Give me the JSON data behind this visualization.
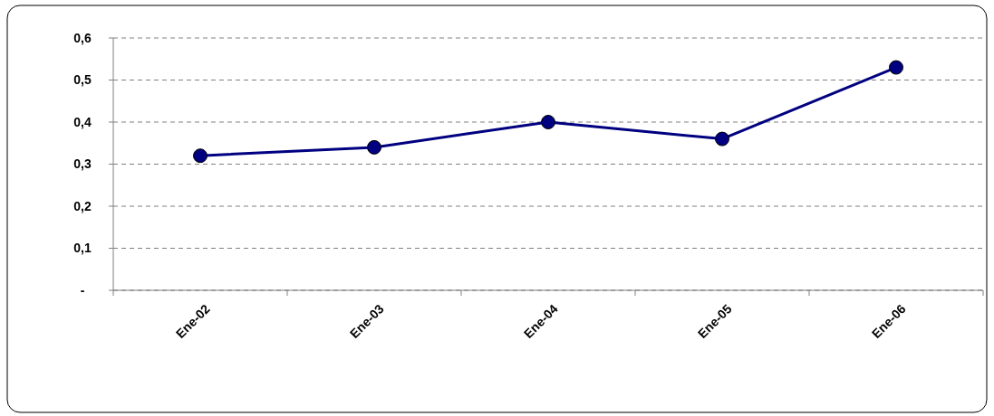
{
  "chart_data": {
    "type": "line",
    "categories": [
      "Ene-02",
      "Ene-03",
      "Ene-04",
      "Ene-05",
      "Ene-06"
    ],
    "series": [
      {
        "color": "#000080",
        "values": [
          0.32,
          0.34,
          0.4,
          0.36,
          0.53
        ]
      }
    ],
    "ylim": [
      0,
      0.6
    ],
    "yticks": [
      {
        "value": 0,
        "label": "-"
      },
      {
        "value": 0.1,
        "label": "0,1"
      },
      {
        "value": 0.2,
        "label": "0,2"
      },
      {
        "value": 0.3,
        "label": "0,3"
      },
      {
        "value": 0.4,
        "label": "0,4"
      },
      {
        "value": 0.5,
        "label": "0,5"
      },
      {
        "value": 0.6,
        "label": "0,6"
      }
    ],
    "grid": "y",
    "marker": "circle",
    "line_style": "solid"
  }
}
